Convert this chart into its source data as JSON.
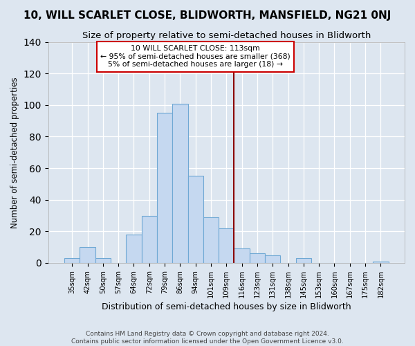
{
  "title": "10, WILL SCARLET CLOSE, BLIDWORTH, MANSFIELD, NG21 0NJ",
  "subtitle": "Size of property relative to semi-detached houses in Blidworth",
  "xlabel": "Distribution of semi-detached houses by size in Blidworth",
  "ylabel": "Number of semi-detached properties",
  "categories": [
    "35sqm",
    "42sqm",
    "50sqm",
    "57sqm",
    "64sqm",
    "72sqm",
    "79sqm",
    "86sqm",
    "94sqm",
    "101sqm",
    "109sqm",
    "116sqm",
    "123sqm",
    "131sqm",
    "138sqm",
    "145sqm",
    "153sqm",
    "160sqm",
    "167sqm",
    "175sqm",
    "182sqm"
  ],
  "values": [
    3,
    10,
    3,
    0,
    18,
    30,
    95,
    101,
    55,
    29,
    22,
    9,
    6,
    5,
    0,
    3,
    0,
    0,
    0,
    0,
    1
  ],
  "bar_color": "#c5d8f0",
  "bar_edge_color": "#6fa8d4",
  "annotation_title": "10 WILL SCARLET CLOSE: 113sqm",
  "annotation_line1": "← 95% of semi-detached houses are smaller (368)",
  "annotation_line2": "5% of semi-detached houses are larger (18) →",
  "vline_color": "#8b0000",
  "vline_position": 10.5,
  "annotation_box_color": "#ffffff",
  "annotation_box_edge": "#cc0000",
  "background_color": "#dde6f0",
  "ylim": [
    0,
    140
  ],
  "yticks": [
    0,
    20,
    40,
    60,
    80,
    100,
    120,
    140
  ],
  "footer": "Contains HM Land Registry data © Crown copyright and database right 2024.\nContains public sector information licensed under the Open Government Licence v3.0.",
  "title_fontsize": 11,
  "subtitle_fontsize": 9.5,
  "xlabel_fontsize": 9,
  "ylabel_fontsize": 8.5
}
